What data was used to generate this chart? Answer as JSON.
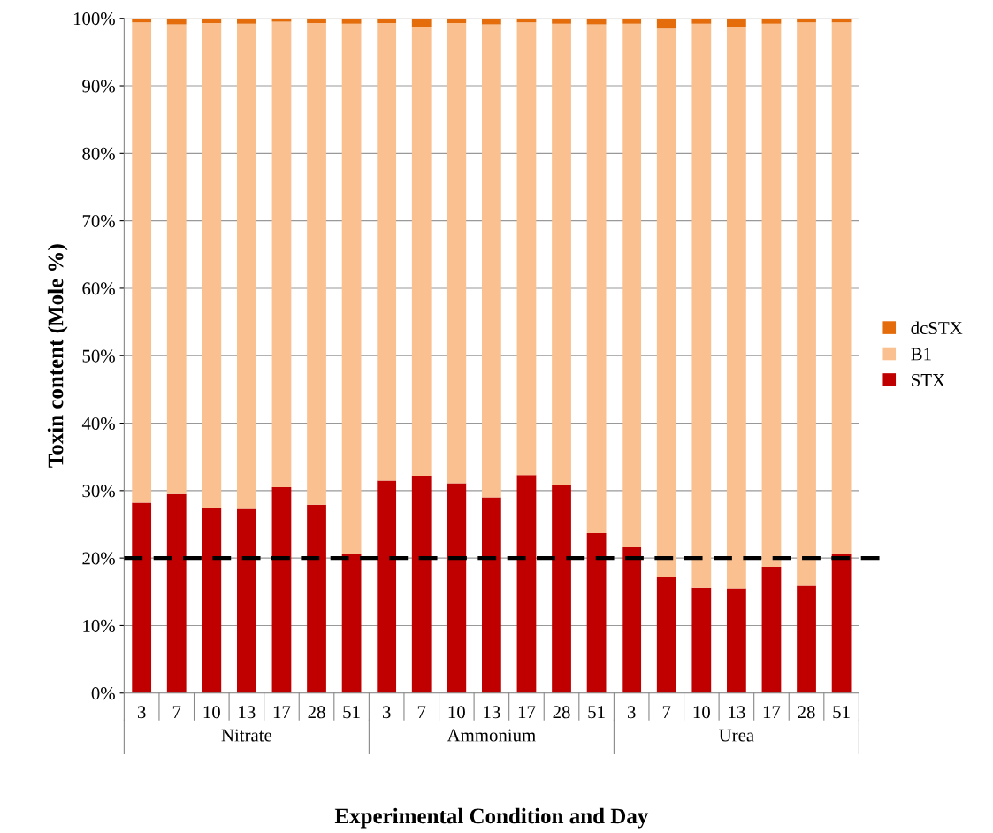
{
  "chart_data": {
    "type": "bar",
    "stacked": true,
    "xlabel": "Experimental Condition and Day",
    "ylabel": "Toxin content (Mole %)",
    "categories": [
      "3",
      "7",
      "10",
      "13",
      "17",
      "28",
      "51",
      "3",
      "7",
      "10",
      "13",
      "17",
      "28",
      "51",
      "3",
      "7",
      "10",
      "13",
      "17",
      "28",
      "51"
    ],
    "series": [
      {
        "name": "STX",
        "color": "#c00000",
        "values": [
          28.2,
          29.5,
          27.5,
          27.3,
          30.5,
          27.9,
          20.6,
          31.5,
          32.2,
          31.1,
          29.0,
          32.3,
          30.8,
          23.7,
          21.6,
          17.2,
          15.6,
          15.5,
          18.7,
          15.9,
          20.6
        ]
      },
      {
        "name": "B1",
        "color": "#fac090",
        "values": [
          71.2,
          69.6,
          71.8,
          71.9,
          69.0,
          71.4,
          78.6,
          67.8,
          66.6,
          68.2,
          70.1,
          67.1,
          68.4,
          75.4,
          77.6,
          81.3,
          83.6,
          83.3,
          80.5,
          83.5,
          78.8
        ]
      },
      {
        "name": "dcSTX",
        "color": "#e46c0a",
        "values": [
          0.6,
          0.9,
          0.7,
          0.8,
          0.5,
          0.7,
          0.8,
          0.7,
          1.2,
          0.7,
          0.9,
          0.6,
          0.8,
          0.9,
          0.8,
          1.5,
          0.8,
          1.2,
          0.8,
          0.6,
          0.6
        ]
      }
    ],
    "ylim": [
      0,
      100
    ],
    "yticks": [
      {
        "value": 0,
        "label": "0%"
      },
      {
        "value": 10,
        "label": "10%"
      },
      {
        "value": 20,
        "label": "20%"
      },
      {
        "value": 30,
        "label": "30%"
      },
      {
        "value": 40,
        "label": "40%"
      },
      {
        "value": 50,
        "label": "50%"
      },
      {
        "value": 60,
        "label": "60%"
      },
      {
        "value": 70,
        "label": "70%"
      },
      {
        "value": 80,
        "label": "80%"
      },
      {
        "value": 90,
        "label": "90%"
      },
      {
        "value": 100,
        "label": "100%"
      }
    ],
    "grid": "y",
    "legend": "right",
    "ref_lines": [
      {
        "axis": "y",
        "value": 20,
        "color": "#000000",
        "line_style": "dashed"
      }
    ],
    "annotations": [
      "Nitrate",
      "Ammonium",
      "Urea"
    ]
  }
}
